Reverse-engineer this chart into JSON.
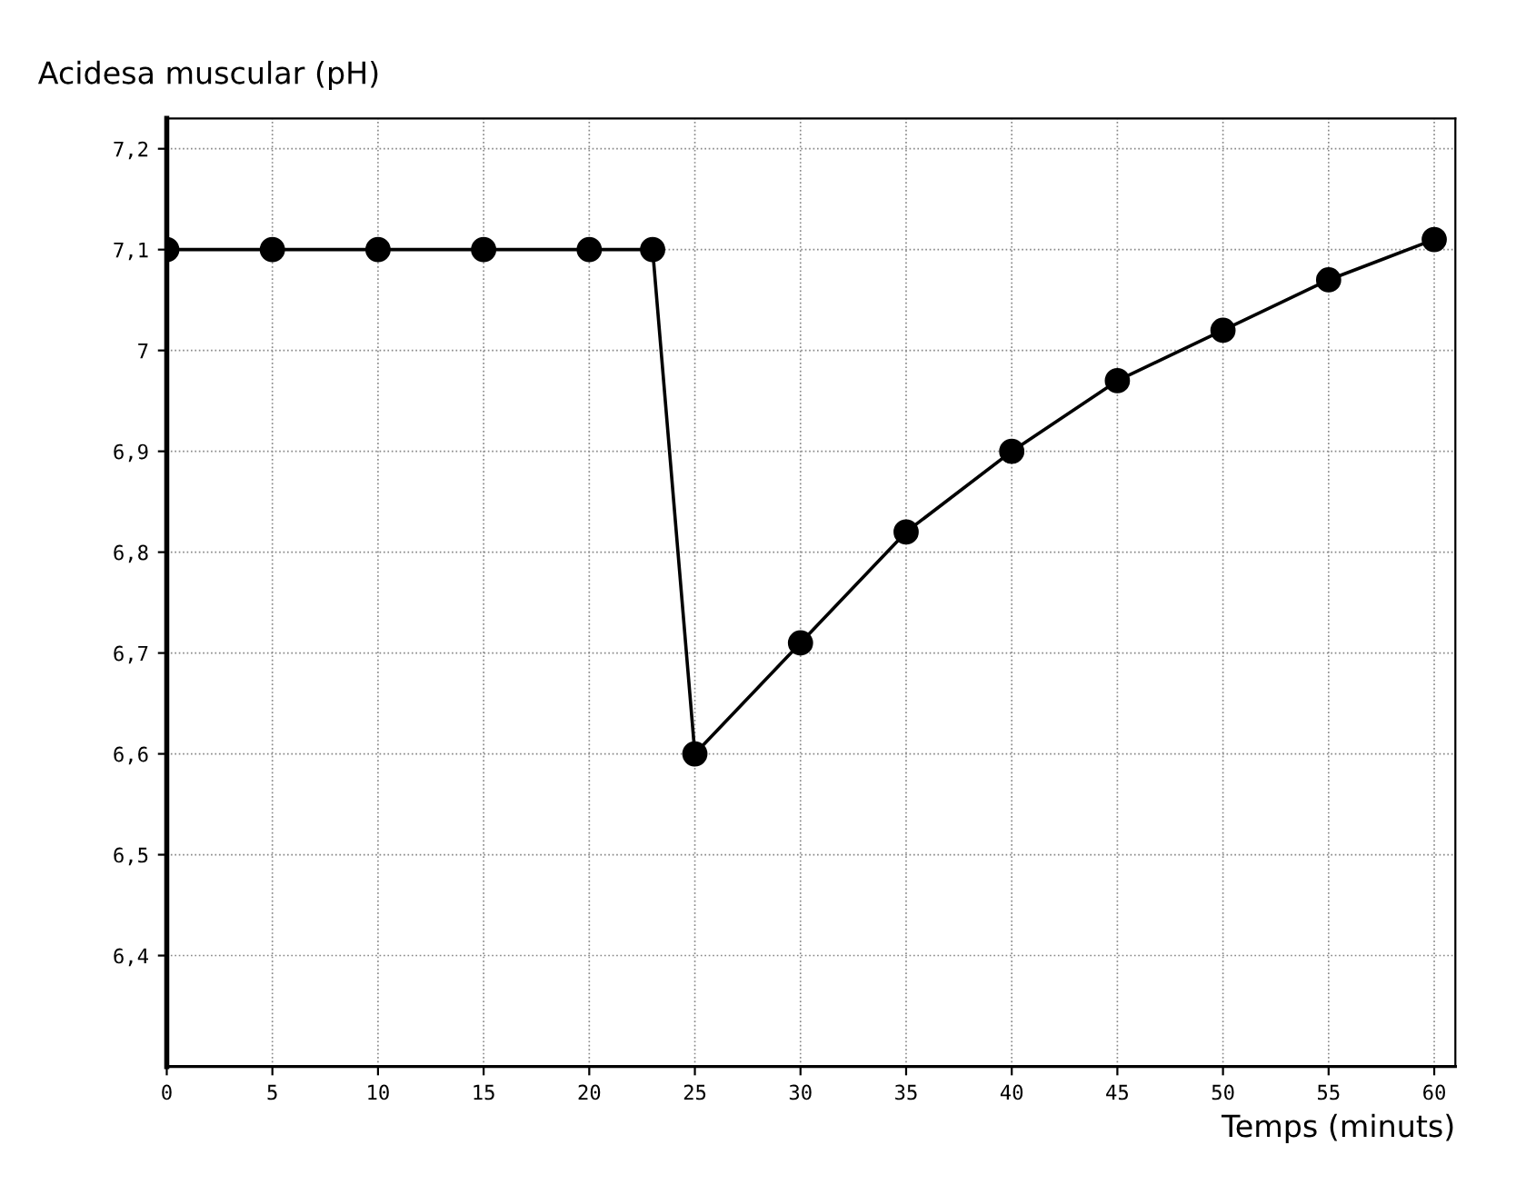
{
  "chart_data": {
    "type": "line",
    "ylabel": "Acidesa muscular (pH)",
    "xlabel": "Temps (minuts)",
    "x": [
      0,
      5,
      10,
      15,
      20,
      23,
      25,
      30,
      35,
      40,
      45,
      50,
      55,
      60
    ],
    "values": [
      7.1,
      7.1,
      7.1,
      7.1,
      7.1,
      7.1,
      6.6,
      6.71,
      6.82,
      6.9,
      6.97,
      7.02,
      7.07,
      7.11
    ],
    "color": "#000000",
    "marker": "circle",
    "line_style": "solid",
    "grid": true,
    "xlim": [
      0,
      61
    ],
    "xticks": [
      0,
      5,
      10,
      15,
      20,
      25,
      30,
      35,
      40,
      45,
      50,
      55,
      60
    ],
    "ylim": [
      6.29,
      7.23
    ],
    "yticks": [
      {
        "value": 6.4,
        "label": "6,4"
      },
      {
        "value": 6.5,
        "label": "6,5"
      },
      {
        "value": 6.6,
        "label": "6,6"
      },
      {
        "value": 6.7,
        "label": "6,7"
      },
      {
        "value": 6.8,
        "label": "6,8"
      },
      {
        "value": 6.9,
        "label": "6,9"
      },
      {
        "value": 7,
        "label": "7"
      },
      {
        "value": 7.1,
        "label": "7,1"
      },
      {
        "value": 7.2,
        "label": "7,2"
      }
    ]
  }
}
